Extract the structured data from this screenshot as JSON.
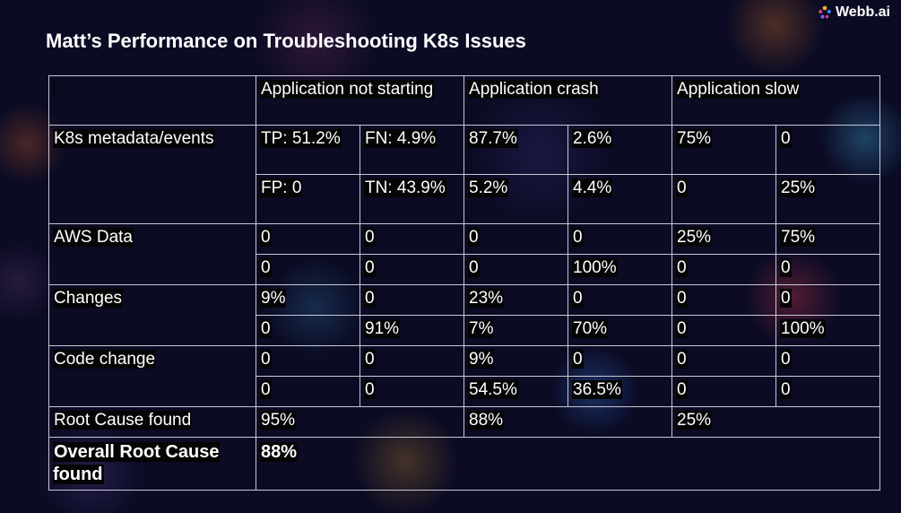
{
  "brand": {
    "name": "Webb.ai",
    "icon": "webb-logo-icon",
    "colors": [
      "#f5a623",
      "#e0407a",
      "#8b5cf6",
      "#3b82f6"
    ]
  },
  "title": "Matt’s Performance on Troubleshooting K8s Issues",
  "table": {
    "headers": {
      "corner": "",
      "not_starting": "Application not starting",
      "crash": "Application crash",
      "slow": "Application slow"
    },
    "k8s": {
      "label": "K8s metadata/events",
      "r1": [
        "TP: 51.2%",
        "FN: 4.9%",
        "87.7%",
        "2.6%",
        "75%",
        "0"
      ],
      "r2": [
        "FP: 0",
        "TN: 43.9%",
        "5.2%",
        "4.4%",
        "0",
        "25%"
      ]
    },
    "aws": {
      "label": "AWS Data",
      "r1": [
        "0",
        "0",
        "0",
        "0",
        "25%",
        "75%"
      ],
      "r2": [
        "0",
        "0",
        "0",
        "100%",
        "0",
        "0"
      ]
    },
    "changes": {
      "label": "Changes",
      "r1": [
        "9%",
        "0",
        "23%",
        "0",
        "0",
        "0"
      ],
      "r2": [
        "0",
        "91%",
        "7%",
        "70%",
        "0",
        "100%"
      ]
    },
    "code": {
      "label": "Code change",
      "r1": [
        "0",
        "0",
        "9%",
        "0",
        "0",
        "0"
      ],
      "r2": [
        "0",
        "0",
        "54.5%",
        "36.5%",
        "0",
        "0"
      ]
    },
    "root": {
      "label": "Root Cause found",
      "values": [
        "95%",
        "88%",
        "25%"
      ]
    },
    "overall": {
      "label": "Overall Root Cause found",
      "value": "88%"
    }
  }
}
